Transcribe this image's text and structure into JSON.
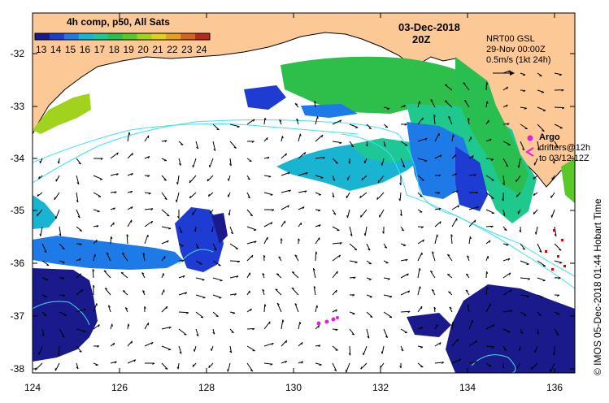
{
  "colorbar": {
    "title": "4h comp, p50, All Sats",
    "ticks": [
      "13",
      "14",
      "15",
      "16",
      "17",
      "18",
      "19",
      "20",
      "21",
      "22",
      "23",
      "24"
    ],
    "colors": [
      "#1a1a8c",
      "#1e3cd2",
      "#1e7ae6",
      "#18b4d2",
      "#1ec896",
      "#28be50",
      "#5ac828",
      "#a0d21e",
      "#dcd21e",
      "#e6a01e",
      "#d2641e",
      "#b4281e"
    ]
  },
  "map": {
    "date": "03-Dec-2018",
    "time": "20Z",
    "gsl": {
      "title": "NRT00 GSL",
      "timestamp": "29-Nov 00:00Z",
      "scale": "0.5m/s (1kt 24h)"
    },
    "argo": {
      "title": "Argo",
      "drifters": "drifters@12h",
      "until": "to 03/12:12Z"
    },
    "credit": "© IMOS 05-Dec-2018 01:44 Hobart Time",
    "y_ticks": [
      "-32",
      "-33",
      "-34",
      "-35",
      "-36",
      "-37",
      "-38"
    ],
    "x_ticks": [
      "124",
      "126",
      "128",
      "130",
      "132",
      "134",
      "136"
    ],
    "colors": {
      "land": "#fcc896",
      "ocean": "#ffffff",
      "argo": "#e020e0",
      "contour": "#40e0f0",
      "drifter": "#e00000"
    }
  }
}
